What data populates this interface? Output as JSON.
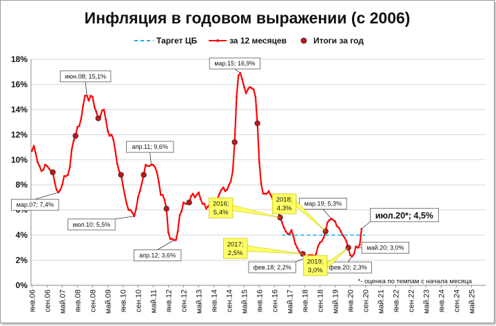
{
  "chart_data": {
    "type": "line",
    "title": "Инфляция в годовом выражении (с 2006)",
    "xlabel": "",
    "ylabel": "",
    "ylim": [
      0,
      18
    ],
    "yticks": [
      "0%",
      "2%",
      "4%",
      "6%",
      "8%",
      "10%",
      "12%",
      "14%",
      "16%",
      "18%"
    ],
    "xticks": [
      "янв.06",
      "сен.06",
      "май.07",
      "янв.08",
      "сен.08",
      "май.09",
      "янв.10",
      "сен.10",
      "май.11",
      "янв.12",
      "сен.12",
      "май.13",
      "янв.14",
      "сен.14",
      "май.15",
      "янв.16",
      "сен.16",
      "май.17",
      "янв.18",
      "сен.18",
      "май.19",
      "янв.20",
      "сен.20",
      "май.21",
      "янв.22",
      "сен.22",
      "май.23",
      "янв.24",
      "сен.24",
      "май.25"
    ],
    "grid": true,
    "legend_position": "top",
    "legend": [
      {
        "name": "Таргет ЦБ",
        "style": "dashed",
        "color": "#00b0f0"
      },
      {
        "name": "за 12 месяцев",
        "style": "line-markers",
        "color": "#ff0000"
      },
      {
        "name": "Итоги за год",
        "style": "markers",
        "color": "#c0161a"
      }
    ],
    "target": {
      "value": 4.0,
      "from": "янв.17",
      "to": "сен.20"
    },
    "series": [
      {
        "name": "за 12 месяцев",
        "start": "янв.06",
        "values": [
          10.7,
          11.1,
          10.5,
          9.8,
          9.5,
          9.1,
          9.2,
          9.6,
          9.5,
          9.3,
          9.1,
          9.0,
          8.2,
          7.6,
          7.4,
          7.6,
          8.0,
          8.7,
          8.7,
          8.8,
          9.4,
          10.8,
          11.5,
          11.9,
          12.6,
          12.7,
          13.3,
          14.3,
          15.1,
          15.1,
          14.7,
          15.1,
          15.0,
          14.2,
          13.8,
          13.3,
          13.4,
          13.9,
          14.0,
          13.2,
          12.3,
          11.9,
          12.0,
          11.6,
          10.7,
          9.7,
          9.1,
          8.8,
          8.0,
          7.2,
          6.5,
          6.0,
          6.0,
          5.8,
          5.5,
          6.1,
          7.0,
          7.5,
          8.1,
          8.8,
          9.6,
          9.5,
          9.5,
          9.6,
          9.6,
          9.4,
          9.0,
          8.2,
          7.2,
          7.2,
          6.8,
          6.1,
          4.2,
          3.7,
          3.7,
          3.6,
          3.6,
          4.3,
          5.6,
          5.9,
          6.6,
          6.5,
          6.5,
          6.6,
          7.1,
          7.3,
          7.0,
          7.2,
          7.4,
          6.9,
          6.5,
          6.5,
          6.1,
          6.3,
          6.5,
          6.5,
          6.1,
          6.2,
          6.9,
          7.3,
          7.6,
          7.8,
          7.5,
          7.6,
          8.0,
          8.3,
          9.1,
          11.4,
          15.0,
          16.7,
          16.9,
          16.4,
          15.8,
          15.3,
          15.6,
          15.8,
          15.7,
          15.6,
          15.0,
          12.9,
          9.8,
          8.1,
          7.3,
          7.3,
          7.3,
          7.5,
          7.2,
          6.9,
          6.4,
          6.1,
          5.8,
          5.4,
          5.0,
          4.6,
          4.3,
          4.1,
          4.1,
          4.4,
          3.9,
          3.3,
          3.0,
          2.7,
          2.5,
          2.5,
          2.2,
          2.2,
          2.4,
          2.4,
          2.4,
          2.3,
          2.5,
          3.1,
          3.4,
          3.5,
          3.8,
          4.3,
          5.0,
          5.2,
          5.3,
          5.2,
          5.1,
          4.7,
          4.6,
          4.3,
          4.0,
          3.8,
          3.5,
          3.0,
          2.4,
          2.3,
          2.5,
          3.1,
          3.0,
          3.2,
          4.5
        ]
      },
      {
        "name": "Итоги за год",
        "points": [
          {
            "x": "дек.06",
            "y": 9.0
          },
          {
            "x": "дек.07",
            "y": 11.9
          },
          {
            "x": "дек.08",
            "y": 13.3
          },
          {
            "x": "дек.09",
            "y": 8.8
          },
          {
            "x": "дек.10",
            "y": 8.8
          },
          {
            "x": "дек.11",
            "y": 6.1
          },
          {
            "x": "дек.12",
            "y": 6.6
          },
          {
            "x": "дек.13",
            "y": 6.5
          },
          {
            "x": "дек.14",
            "y": 11.4
          },
          {
            "x": "дек.15",
            "y": 12.9
          },
          {
            "x": "дек.16",
            "y": 5.4
          },
          {
            "x": "дек.17",
            "y": 2.5
          },
          {
            "x": "дек.18",
            "y": 4.3
          },
          {
            "x": "дек.19",
            "y": 3.0
          }
        ]
      }
    ],
    "annotations": [
      {
        "text": "мар.07; 7,4%",
        "x": "мар.07",
        "y": 7.4,
        "style": "white"
      },
      {
        "text": "июн.08; 15,1%",
        "x": "июн.08",
        "y": 15.1,
        "style": "white"
      },
      {
        "text": "июл.10; 5,5%",
        "x": "июл.10",
        "y": 5.5,
        "style": "white"
      },
      {
        "text": "апр.11; 9,6%",
        "x": "апр.11",
        "y": 9.6,
        "style": "white"
      },
      {
        "text": "апр.12; 3,6%",
        "x": "апр.12",
        "y": 3.6,
        "style": "white"
      },
      {
        "text": "мар.15; 16,9%",
        "x": "мар.15",
        "y": 16.9,
        "style": "white"
      },
      {
        "text": "фев.18; 2,2%",
        "x": "фев.18",
        "y": 2.2,
        "style": "white"
      },
      {
        "text": "мар.19; 5,3%",
        "x": "мар.19",
        "y": 5.3,
        "style": "white"
      },
      {
        "text": "фев.20; 2,3%",
        "x": "фев.20",
        "y": 2.3,
        "style": "white"
      },
      {
        "text": "май.20; 3,0%",
        "x": "май.20",
        "y": 3.0,
        "style": "white"
      },
      {
        "text": "июл.20*; 4,5%",
        "x": "июл.20",
        "y": 4.5,
        "style": "white-large"
      },
      {
        "text": [
          "2016;",
          "5,4%"
        ],
        "x": "дек.16",
        "y": 5.4,
        "style": "yellow"
      },
      {
        "text": [
          "2017;",
          "2,5%"
        ],
        "x": "дек.17",
        "y": 2.5,
        "style": "yellow"
      },
      {
        "text": [
          "2018;",
          "4,3%"
        ],
        "x": "дек.18",
        "y": 4.3,
        "style": "yellow"
      },
      {
        "text": [
          "2019;",
          "3,0%"
        ],
        "x": "дек.19",
        "y": 3.0,
        "style": "yellow"
      }
    ],
    "footnote": "*- оценка по темпам с начала месяца"
  }
}
